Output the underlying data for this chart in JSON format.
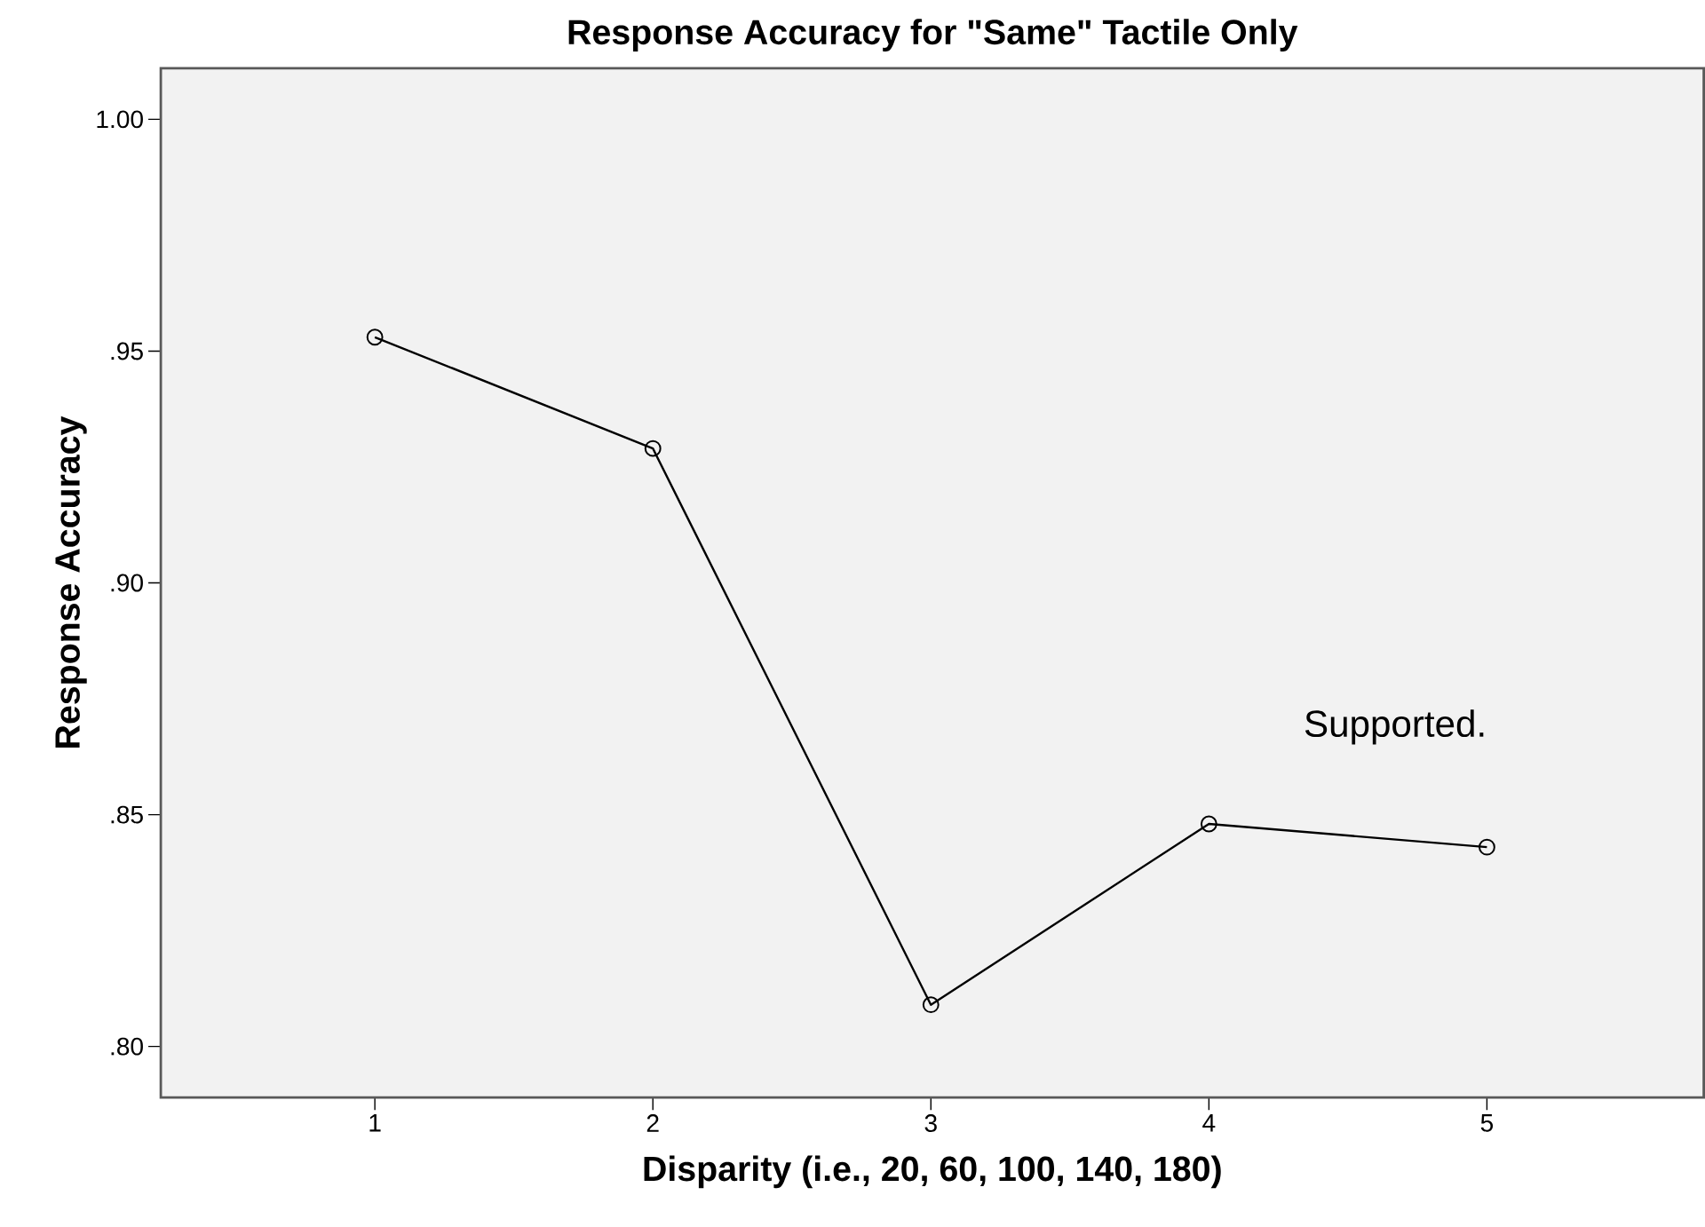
{
  "chart_data": {
    "type": "line",
    "title": "Response Accuracy for \"Same\" Tactile Only",
    "xlabel": "Disparity (i.e., 20, 60, 100, 140, 180)",
    "ylabel": "Response Accuracy",
    "categories": [
      "1",
      "2",
      "3",
      "4",
      "5"
    ],
    "series": [
      {
        "color": "#000000",
        "values": [
          0.953,
          0.929,
          0.809,
          0.848,
          0.843
        ]
      }
    ],
    "ylim": [
      0.789,
      1.011
    ],
    "yticks": [
      {
        "value": 0.8,
        "label": ".80"
      },
      {
        "value": 0.85,
        "label": ".85"
      },
      {
        "value": 0.9,
        "label": ".90"
      },
      {
        "value": 0.95,
        "label": ".95"
      },
      {
        "value": 1.0,
        "label": "1.00"
      }
    ],
    "annotations": [
      "Supported."
    ],
    "marker": "circle",
    "line_style": "solid",
    "grid": false
  }
}
